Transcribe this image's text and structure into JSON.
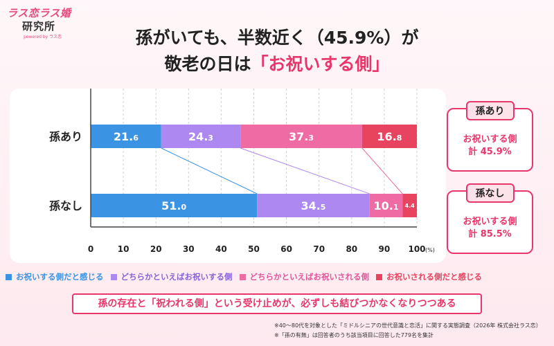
{
  "logo": {
    "line1": "ラス恋ラス婚",
    "line2": "研究所",
    "line3": "powered by ラス恋"
  },
  "title": {
    "line1": "孫がいても、半数近く（45.9%）が",
    "line2_prefix": "敬老の日は",
    "line2_highlight": "「お祝いする側」"
  },
  "colors": {
    "accent": "#e8366b",
    "series": [
      "#3b94e3",
      "#ad88f0",
      "#ee6ba3",
      "#e8435f"
    ]
  },
  "chart_data": {
    "type": "bar",
    "orientation": "horizontal",
    "stacked": true,
    "categories": [
      "孫あり",
      "孫なし"
    ],
    "series": [
      {
        "name": "お祝いする側だと感じる",
        "values": [
          21.6,
          51.0
        ],
        "labels": [
          [
            "21.",
            "6"
          ],
          [
            "51.",
            "0"
          ]
        ]
      },
      {
        "name": "どちらかといえばお祝いする側",
        "values": [
          24.3,
          34.5
        ],
        "labels": [
          [
            "24.",
            "3"
          ],
          [
            "34.",
            "5"
          ]
        ]
      },
      {
        "name": "どちらかといえばお祝いされる側",
        "values": [
          37.3,
          10.1
        ],
        "labels": [
          [
            "37.",
            "3"
          ],
          [
            "10.",
            "1"
          ]
        ]
      },
      {
        "name": "お祝いされる側だと感じる",
        "values": [
          16.8,
          4.4
        ],
        "labels": [
          [
            "16.",
            "8"
          ],
          [
            "4.4",
            ""
          ]
        ]
      }
    ],
    "xlim": [
      0,
      100
    ],
    "xticks": [
      0,
      10,
      20,
      30,
      40,
      50,
      60,
      70,
      80,
      90,
      100
    ],
    "xunit": "(%)",
    "grid": true,
    "legend_position": "bottom"
  },
  "side_boxes": [
    {
      "tag": "孫あり",
      "line1": "お祝いする側",
      "line2": "計 45.9%"
    },
    {
      "tag": "孫なし",
      "line1": "お祝いする側",
      "line2": "計 85.5%"
    }
  ],
  "banner": "孫の存在と「祝われる側」という受け止めが、必ずしも結びつかなくなりつつある",
  "notes": [
    "※40～80代を対象とした「ミドルシニアの世代意識と恋活」に関する実態調査（2026年 株式会社ラス恋）",
    "※「孫の有無」は回答者のうち該当項目に回答した779名を集計"
  ]
}
